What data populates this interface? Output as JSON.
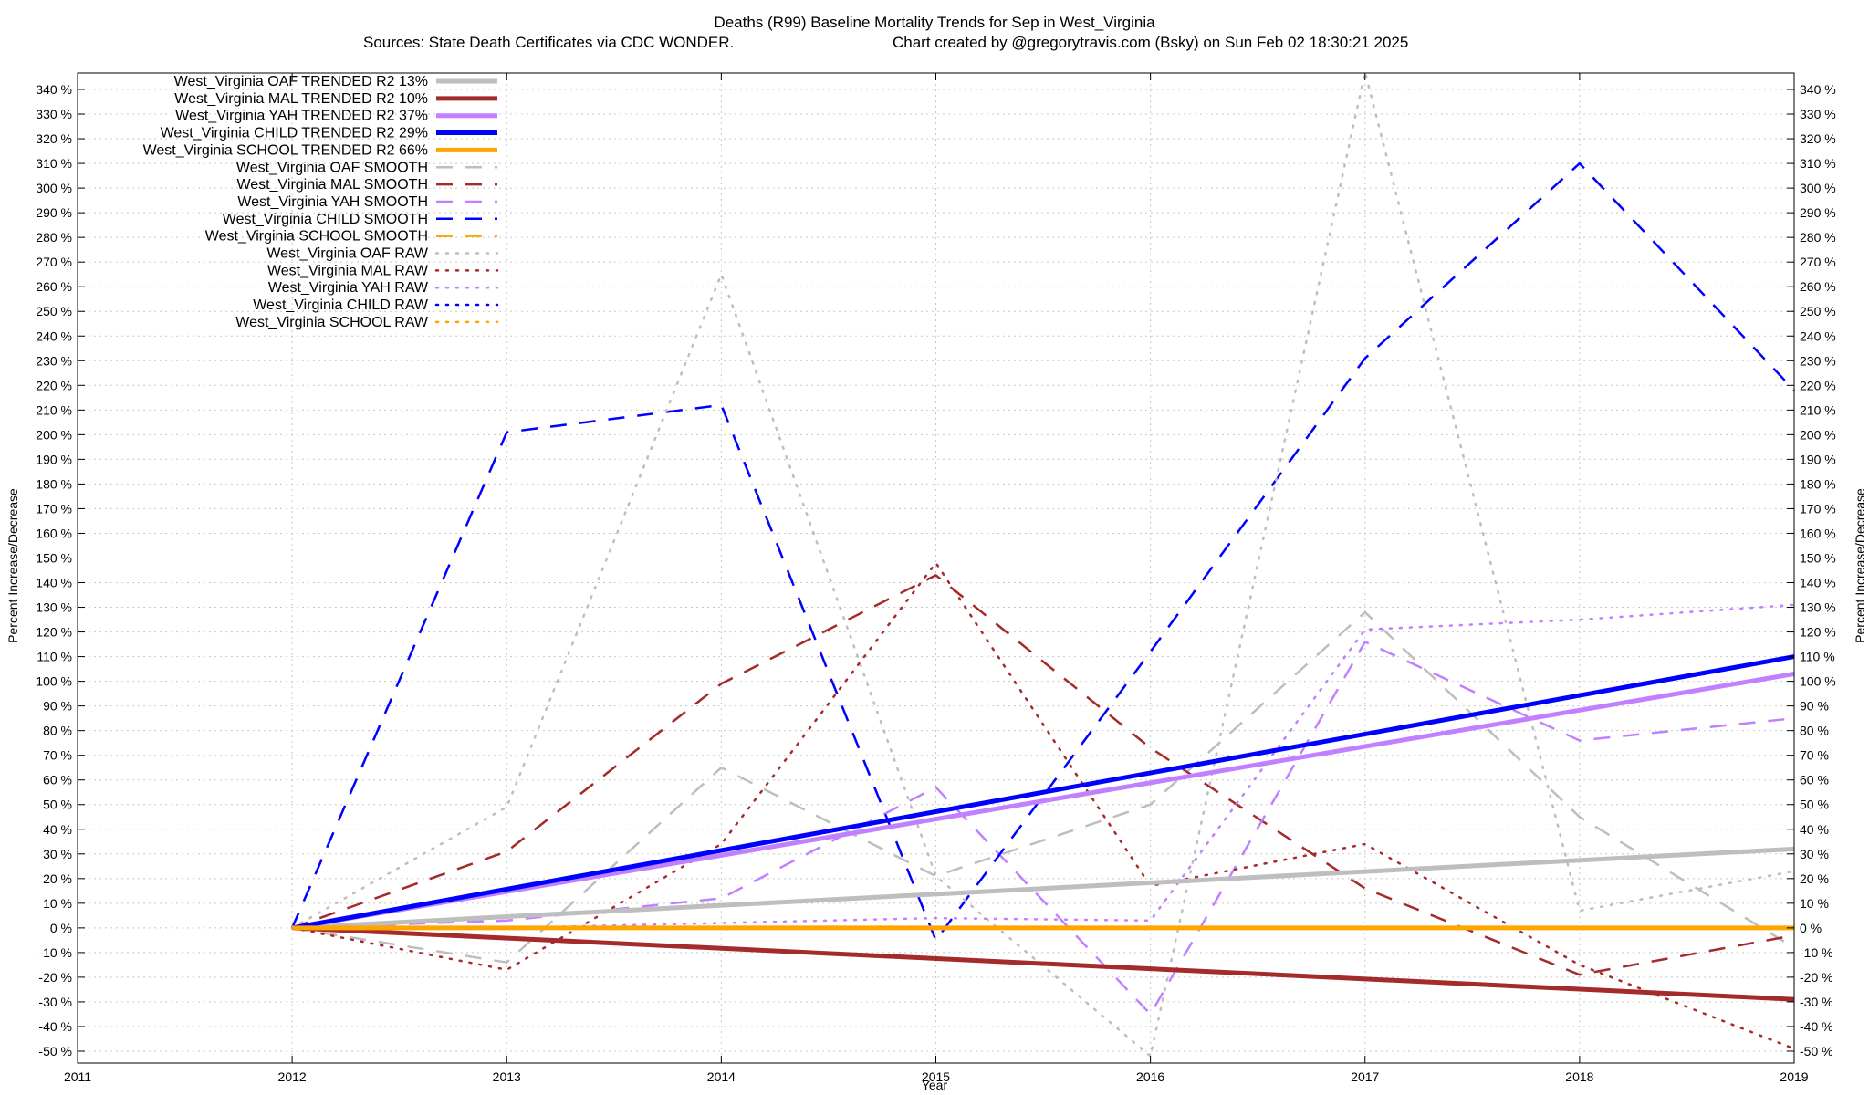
{
  "chart_data": {
    "type": "line",
    "title": "Deaths (R99)  Baseline Mortality Trends for Sep in West_Virginia",
    "subtitle_left": "Sources: State Death Certificates via CDC WONDER.",
    "subtitle_right": "Chart created by @gregorytravis.com (Bsky) on Sun Feb 02 18:30:21 2025",
    "xlabel": "Year",
    "ylabel_left": "Percent Increase/Decrease",
    "ylabel_right": "Percent Increase/Decrease",
    "xlim": [
      2011,
      2019
    ],
    "ylim": [
      -50,
      340
    ],
    "x_ticks": [
      2011,
      2012,
      2013,
      2014,
      2015,
      2016,
      2017,
      2018,
      2019
    ],
    "y_ticks": [
      -50,
      -40,
      -30,
      -20,
      -10,
      0,
      10,
      20,
      30,
      40,
      50,
      60,
      70,
      80,
      90,
      100,
      110,
      120,
      130,
      140,
      150,
      160,
      170,
      180,
      190,
      200,
      210,
      220,
      230,
      240,
      250,
      260,
      270,
      280,
      290,
      300,
      310,
      320,
      330,
      340
    ],
    "y_tick_suffix": " %",
    "grid": true,
    "legend_position": "top-left",
    "series": [
      {
        "name": "West_Virginia OAF TRENDED R2  13%",
        "style": "solid",
        "color": "#bebebe",
        "width": 5,
        "x": [
          2012,
          2019
        ],
        "y": [
          0,
          32
        ]
      },
      {
        "name": "West_Virginia MAL TRENDED R2  10%",
        "style": "solid",
        "color": "#a52a2a",
        "width": 5,
        "x": [
          2012,
          2019
        ],
        "y": [
          0,
          -29
        ]
      },
      {
        "name": "West_Virginia YAH TRENDED R2  37%",
        "style": "solid",
        "color": "#c080ff",
        "width": 5,
        "x": [
          2012,
          2019
        ],
        "y": [
          0,
          103
        ]
      },
      {
        "name": "West_Virginia CHILD TRENDED R2  29%",
        "style": "solid",
        "color": "#0000ff",
        "width": 5,
        "x": [
          2012,
          2019
        ],
        "y": [
          0,
          110
        ]
      },
      {
        "name": "West_Virginia SCHOOL TRENDED R2  66%",
        "style": "solid",
        "color": "#ffa500",
        "width": 5,
        "x": [
          2012,
          2019
        ],
        "y": [
          0,
          0
        ]
      },
      {
        "name": "West_Virginia OAF SMOOTH",
        "style": "dashed",
        "color": "#bebebe",
        "width": 2.5,
        "x": [
          2012,
          2013,
          2014,
          2015,
          2016,
          2017,
          2018,
          2019
        ],
        "y": [
          0,
          -14,
          65,
          21,
          50,
          128,
          45,
          -8
        ]
      },
      {
        "name": "West_Virginia MAL SMOOTH",
        "style": "dashed",
        "color": "#a52a2a",
        "width": 2.5,
        "x": [
          2012,
          2013,
          2014,
          2015,
          2016,
          2017,
          2018,
          2019
        ],
        "y": [
          0,
          31,
          99,
          143,
          73,
          16,
          -19,
          -3
        ]
      },
      {
        "name": "West_Virginia YAH SMOOTH",
        "style": "dashed",
        "color": "#c080ff",
        "width": 2.5,
        "x": [
          2012,
          2013,
          2014,
          2015,
          2016,
          2017,
          2018,
          2019
        ],
        "y": [
          0,
          3,
          12,
          57,
          -35,
          116,
          76,
          85
        ]
      },
      {
        "name": "West_Virginia CHILD SMOOTH",
        "style": "dashed",
        "color": "#0000ff",
        "width": 2.5,
        "x": [
          2012,
          2013,
          2014,
          2015,
          2016,
          2017,
          2018,
          2019
        ],
        "y": [
          0,
          201,
          212,
          -5,
          112,
          231,
          310,
          218
        ]
      },
      {
        "name": "West_Virginia SCHOOL SMOOTH",
        "style": "dashed",
        "color": "#ffa500",
        "width": 2.5,
        "x": [
          2012,
          2019
        ],
        "y": [
          0,
          0
        ]
      },
      {
        "name": "West_Virginia OAF RAW",
        "style": "dotted",
        "color": "#bebebe",
        "width": 2.5,
        "x": [
          2012,
          2013,
          2014,
          2015,
          2016,
          2017,
          2018,
          2019
        ],
        "y": [
          0,
          49,
          265,
          21,
          -52,
          347,
          7,
          23
        ]
      },
      {
        "name": "West_Virginia MAL RAW",
        "style": "dotted",
        "color": "#a52a2a",
        "width": 2.5,
        "x": [
          2012,
          2013,
          2014,
          2015,
          2016,
          2017,
          2018,
          2019
        ],
        "y": [
          0,
          -17,
          34,
          148,
          17,
          34,
          -15,
          -49
        ]
      },
      {
        "name": "West_Virginia YAH RAW",
        "style": "dotted",
        "color": "#c080ff",
        "width": 2.5,
        "x": [
          2012,
          2013,
          2014,
          2015,
          2016,
          2017,
          2018,
          2019
        ],
        "y": [
          0,
          0,
          2,
          4,
          3,
          121,
          125,
          131
        ]
      },
      {
        "name": "West_Virginia CHILD RAW",
        "style": "dotted",
        "color": "#0000ff",
        "width": 2.5,
        "x": [
          2012,
          2019
        ],
        "y": [
          0,
          0
        ]
      },
      {
        "name": "West_Virginia SCHOOL RAW",
        "style": "dotted",
        "color": "#ffa500",
        "width": 2.5,
        "x": [
          2012,
          2019
        ],
        "y": [
          0,
          0
        ]
      }
    ]
  }
}
